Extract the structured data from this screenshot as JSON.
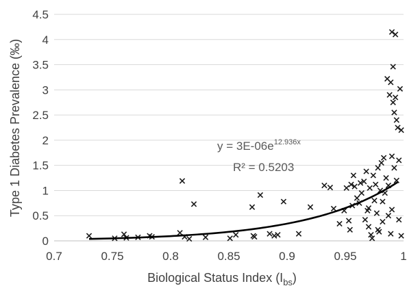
{
  "chart_data": {
    "type": "scatter",
    "xlabel": "Biological Status Index (I",
    "xlabel_subscript": "bs",
    "xlabel_close": ")",
    "ylabel": "Type 1 Diabetes Prevalence (‰)",
    "xlim": [
      0.7,
      1.0
    ],
    "ylim": [
      0,
      4.5
    ],
    "x_ticks": [
      0.7,
      0.75,
      0.8,
      0.85,
      0.9,
      0.95,
      1.0
    ],
    "x_tick_labels": [
      "0.7",
      "0.75",
      "0.8",
      "0.85",
      "0.9",
      "0.95",
      "1"
    ],
    "y_ticks": [
      0,
      0.5,
      1,
      1.5,
      2,
      2.5,
      3,
      3.5,
      4,
      4.5
    ],
    "y_tick_labels": [
      "0",
      "0.5",
      "1",
      "1.5",
      "2",
      "2.5",
      "3",
      "3.5",
      "4",
      "4.5"
    ],
    "grid": "horizontal",
    "marker": "x",
    "trendline": {
      "type": "exponential",
      "a": 3e-06,
      "b": 12.936,
      "x_range": [
        0.73,
        0.995
      ],
      "equation_text": "y = 3E-06e",
      "equation_exponent": "12.936x",
      "r2_text": "R² = 0.5203"
    },
    "points": [
      {
        "x": 0.73,
        "y": 0.1
      },
      {
        "x": 0.752,
        "y": 0.05
      },
      {
        "x": 0.76,
        "y": 0.13
      },
      {
        "x": 0.762,
        "y": 0.06
      },
      {
        "x": 0.772,
        "y": 0.07
      },
      {
        "x": 0.782,
        "y": 0.1
      },
      {
        "x": 0.784,
        "y": 0.08
      },
      {
        "x": 0.808,
        "y": 0.16
      },
      {
        "x": 0.81,
        "y": 1.19
      },
      {
        "x": 0.812,
        "y": 0.08
      },
      {
        "x": 0.816,
        "y": 0.04
      },
      {
        "x": 0.82,
        "y": 0.73
      },
      {
        "x": 0.83,
        "y": 0.07
      },
      {
        "x": 0.851,
        "y": 0.05
      },
      {
        "x": 0.856,
        "y": 0.12
      },
      {
        "x": 0.87,
        "y": 0.67
      },
      {
        "x": 0.871,
        "y": 0.1
      },
      {
        "x": 0.872,
        "y": 0.08
      },
      {
        "x": 0.877,
        "y": 0.91
      },
      {
        "x": 0.885,
        "y": 0.14
      },
      {
        "x": 0.889,
        "y": 0.1
      },
      {
        "x": 0.892,
        "y": 0.12
      },
      {
        "x": 0.897,
        "y": 0.78
      },
      {
        "x": 0.91,
        "y": 0.14
      },
      {
        "x": 0.92,
        "y": 0.67
      },
      {
        "x": 0.932,
        "y": 1.1
      },
      {
        "x": 0.937,
        "y": 1.06
      },
      {
        "x": 0.94,
        "y": 0.64
      },
      {
        "x": 0.945,
        "y": 0.34
      },
      {
        "x": 0.949,
        "y": 0.6
      },
      {
        "x": 0.951,
        "y": 1.05
      },
      {
        "x": 0.953,
        "y": 0.4
      },
      {
        "x": 0.954,
        "y": 0.22
      },
      {
        "x": 0.955,
        "y": 1.12
      },
      {
        "x": 0.956,
        "y": 0.7
      },
      {
        "x": 0.957,
        "y": 1.3
      },
      {
        "x": 0.958,
        "y": 1.08
      },
      {
        "x": 0.96,
        "y": 0.85
      },
      {
        "x": 0.962,
        "y": 0.75
      },
      {
        "x": 0.963,
        "y": 1.15
      },
      {
        "x": 0.964,
        "y": 0.95
      },
      {
        "x": 0.966,
        "y": 1.18
      },
      {
        "x": 0.967,
        "y": 0.42
      },
      {
        "x": 0.968,
        "y": 1.38
      },
      {
        "x": 0.969,
        "y": 0.6
      },
      {
        "x": 0.97,
        "y": 0.28
      },
      {
        "x": 0.971,
        "y": 1.05
      },
      {
        "x": 0.972,
        "y": 0.12
      },
      {
        "x": 0.973,
        "y": 0.05
      },
      {
        "x": 0.974,
        "y": 1.3
      },
      {
        "x": 0.975,
        "y": 0.8
      },
      {
        "x": 0.976,
        "y": 1.12
      },
      {
        "x": 0.977,
        "y": 0.55
      },
      {
        "x": 0.978,
        "y": 1.45
      },
      {
        "x": 0.979,
        "y": 0.18
      },
      {
        "x": 0.98,
        "y": 1.0
      },
      {
        "x": 0.981,
        "y": 1.55
      },
      {
        "x": 0.982,
        "y": 0.38
      },
      {
        "x": 0.983,
        "y": 1.65
      },
      {
        "x": 0.984,
        "y": 0.95
      },
      {
        "x": 0.985,
        "y": 1.25
      },
      {
        "x": 0.986,
        "y": 3.22
      },
      {
        "x": 0.987,
        "y": 0.5
      },
      {
        "x": 0.988,
        "y": 2.9
      },
      {
        "x": 0.989,
        "y": 3.15
      },
      {
        "x": 0.99,
        "y": 4.15
      },
      {
        "x": 0.991,
        "y": 3.46
      },
      {
        "x": 0.992,
        "y": 2.55
      },
      {
        "x": 0.993,
        "y": 4.1
      },
      {
        "x": 0.993,
        "y": 2.85
      },
      {
        "x": 0.994,
        "y": 2.4
      },
      {
        "x": 0.995,
        "y": 2.25
      },
      {
        "x": 0.996,
        "y": 1.6
      },
      {
        "x": 0.997,
        "y": 3.02
      },
      {
        "x": 0.998,
        "y": 2.2
      },
      {
        "x": 0.991,
        "y": 2.75
      },
      {
        "x": 0.99,
        "y": 1.68
      },
      {
        "x": 0.992,
        "y": 1.45
      },
      {
        "x": 0.994,
        "y": 1.2
      },
      {
        "x": 0.996,
        "y": 0.42
      },
      {
        "x": 0.998,
        "y": 0.1
      },
      {
        "x": 0.99,
        "y": 0.62
      },
      {
        "x": 0.989,
        "y": 0.14
      },
      {
        "x": 0.987,
        "y": 1.1
      },
      {
        "x": 0.982,
        "y": 0.78
      },
      {
        "x": 0.978,
        "y": 0.22
      },
      {
        "x": 0.97,
        "y": 0.65
      }
    ]
  }
}
